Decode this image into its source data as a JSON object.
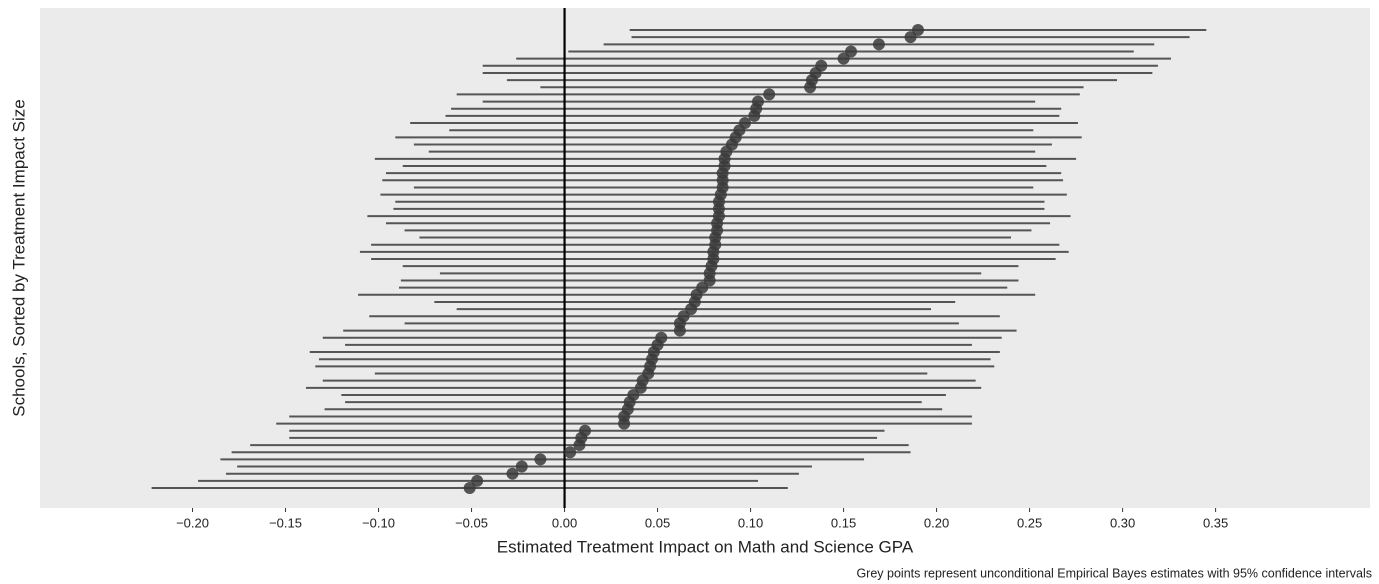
{
  "chart_data": {
    "type": "interval",
    "x_label": "Estimated Treatment Impact on Math and Science GPA",
    "y_label": "Schools, Sorted by Treatment Impact Size",
    "caption": "Grey points represent unconditional Empirical Bayes estimates with 95% confidence intervals",
    "values": [
      0.19,
      0.186,
      0.169,
      0.154,
      0.15,
      0.138,
      0.135,
      0.133,
      0.132,
      0.11,
      0.104,
      0.103,
      0.102,
      0.097,
      0.094,
      0.092,
      0.09,
      0.087,
      0.086,
      0.086,
      0.085,
      0.085,
      0.085,
      0.084,
      0.083,
      0.083,
      0.083,
      0.082,
      0.082,
      0.081,
      0.081,
      0.08,
      0.08,
      0.079,
      0.078,
      0.078,
      0.074,
      0.071,
      0.07,
      0.068,
      0.064,
      0.062,
      0.062,
      0.052,
      0.05,
      0.048,
      0.047,
      0.046,
      0.045,
      0.042,
      0.041,
      0.037,
      0.035,
      0.034,
      0.032,
      0.032,
      0.011,
      0.009,
      0.008,
      0.003,
      -0.013,
      -0.023,
      -0.028,
      -0.047,
      -0.051
    ],
    "lower": [
      0.035,
      0.036,
      0.021,
      0.002,
      -0.026,
      -0.044,
      -0.044,
      -0.031,
      -0.013,
      -0.058,
      -0.044,
      -0.061,
      -0.064,
      -0.083,
      -0.062,
      -0.091,
      -0.081,
      -0.073,
      -0.102,
      -0.087,
      -0.096,
      -0.098,
      -0.081,
      -0.099,
      -0.091,
      -0.092,
      -0.106,
      -0.096,
      -0.086,
      -0.078,
      -0.104,
      -0.11,
      -0.104,
      -0.087,
      -0.067,
      -0.088,
      -0.089,
      -0.111,
      -0.07,
      -0.058,
      -0.105,
      -0.086,
      -0.119,
      -0.13,
      -0.118,
      -0.137,
      -0.132,
      -0.134,
      -0.102,
      -0.13,
      -0.139,
      -0.12,
      -0.118,
      -0.129,
      -0.148,
      -0.155,
      -0.148,
      -0.148,
      -0.169,
      -0.179,
      -0.185,
      -0.176,
      -0.182,
      -0.197,
      -0.222
    ],
    "upper": [
      0.345,
      0.336,
      0.317,
      0.306,
      0.326,
      0.319,
      0.316,
      0.297,
      0.279,
      0.277,
      0.253,
      0.267,
      0.266,
      0.276,
      0.252,
      0.278,
      0.262,
      0.253,
      0.275,
      0.259,
      0.267,
      0.268,
      0.252,
      0.27,
      0.258,
      0.258,
      0.272,
      0.261,
      0.251,
      0.24,
      0.266,
      0.271,
      0.264,
      0.244,
      0.224,
      0.244,
      0.238,
      0.253,
      0.21,
      0.197,
      0.234,
      0.212,
      0.243,
      0.235,
      0.219,
      0.234,
      0.229,
      0.231,
      0.195,
      0.221,
      0.224,
      0.205,
      0.192,
      0.203,
      0.219,
      0.219,
      0.172,
      0.168,
      0.185,
      0.186,
      0.161,
      0.133,
      0.126,
      0.104,
      0.12
    ],
    "color": "#3a3a3a",
    "interval_color": "#555555",
    "vline": 0,
    "xlim": [
      -0.282,
      0.433
    ],
    "xticks": [
      {
        "value": -0.2,
        "label": "−0.20"
      },
      {
        "value": -0.15,
        "label": "−0.15"
      },
      {
        "value": -0.1,
        "label": "−0.10"
      },
      {
        "value": -0.05,
        "label": "−0.05"
      },
      {
        "value": 0,
        "label": "0.00"
      },
      {
        "value": 0.05,
        "label": "0.05"
      },
      {
        "value": 0.1,
        "label": "0.10"
      },
      {
        "value": 0.15,
        "label": "0.15"
      },
      {
        "value": 0.2,
        "label": "0.20"
      },
      {
        "value": 0.25,
        "label": "0.25"
      },
      {
        "value": 0.3,
        "label": "0.30"
      },
      {
        "value": 0.35,
        "label": "0.35"
      }
    ]
  }
}
